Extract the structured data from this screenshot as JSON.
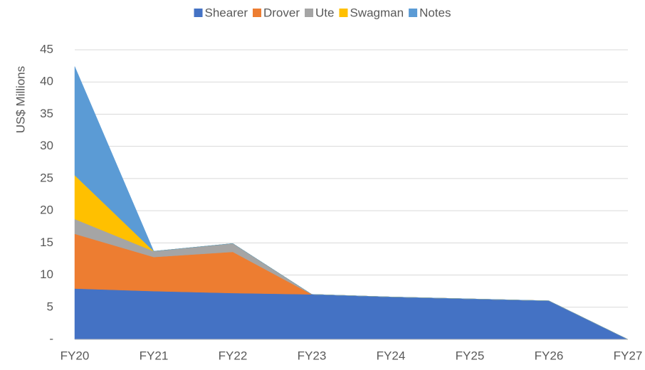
{
  "chart_data": {
    "type": "stacked_area",
    "y_label": "US$ Millions",
    "categories": [
      "FY20",
      "FY21",
      "FY22",
      "FY23",
      "FY24",
      "FY25",
      "FY26",
      "FY27"
    ],
    "series": [
      {
        "name": "Shearer",
        "color": "#4472c4",
        "values": [
          7.9,
          7.5,
          7.2,
          7.0,
          6.6,
          6.3,
          6.0,
          0
        ]
      },
      {
        "name": "Drover",
        "color": "#ed7d31",
        "values": [
          8.5,
          5.3,
          6.4,
          0,
          0,
          0,
          0,
          0
        ]
      },
      {
        "name": "Ute",
        "color": "#a5a5a5",
        "values": [
          2.3,
          0.9,
          1.3,
          0,
          0,
          0,
          0,
          0
        ]
      },
      {
        "name": "Swagman",
        "color": "#ffc000",
        "values": [
          6.8,
          0,
          0,
          0,
          0,
          0,
          0,
          0
        ]
      },
      {
        "name": "Notes",
        "color": "#5b9bd5",
        "values": [
          16.9,
          0,
          0,
          0,
          0,
          0,
          0,
          0
        ]
      }
    ],
    "ylim": [
      0,
      45
    ],
    "yticks": [
      {
        "value": 0,
        "label": "-"
      },
      5,
      10,
      15,
      20,
      25,
      30,
      35,
      40,
      45
    ],
    "grid": true,
    "legend": "top"
  }
}
